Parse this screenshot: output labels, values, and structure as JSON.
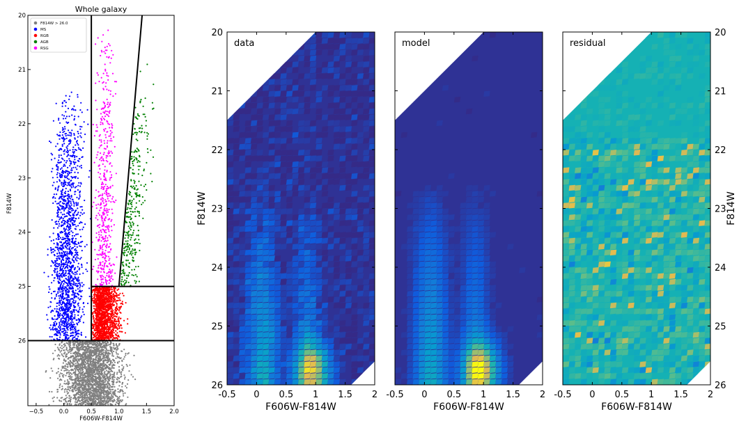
{
  "chart_data": [
    {
      "type": "scatter",
      "title": "Whole galaxy",
      "xlabel": "F606W-F814W",
      "ylabel": "F814W",
      "xlim": [
        -0.65,
        2.0
      ],
      "ylim": [
        27.2,
        20.0
      ],
      "y_inverted": true,
      "xticks": [
        -0.5,
        0.0,
        0.5,
        1.0,
        1.5,
        2.0
      ],
      "xtick_labels": [
        "−0.5",
        "0.0",
        "0.5",
        "1.0",
        "1.5",
        "2.0"
      ],
      "yticks": [
        20,
        21,
        22,
        23,
        24,
        25,
        26
      ],
      "ytick_labels": [
        "20",
        "21",
        "22",
        "23",
        "24",
        "25",
        "26"
      ],
      "legend": {
        "placement": "top-left",
        "entries": [
          {
            "name": "F814W > 26.0",
            "color": "#808080"
          },
          {
            "name": "MS",
            "color": "#0000ff"
          },
          {
            "name": "RGB",
            "color": "#ff0000"
          },
          {
            "name": "AGB",
            "color": "#008000"
          },
          {
            "name": "RSG",
            "color": "#ff00ff"
          }
        ]
      },
      "boundaries": [
        {
          "x": [
            0.5,
            0.5
          ],
          "y": [
            20.0,
            26.0
          ]
        },
        {
          "x": [
            1.0,
            1.42
          ],
          "y": [
            25.0,
            20.0
          ]
        },
        {
          "x": [
            0.5,
            2.0
          ],
          "y": [
            25.0,
            25.0
          ]
        },
        {
          "x": [
            -0.65,
            2.0
          ],
          "y": [
            26.0,
            26.0
          ]
        }
      ],
      "populations": [
        {
          "name": "F814W > 26.0",
          "color": "#808080",
          "region": {
            "x": [
              -0.6,
              1.6
            ],
            "y": [
              26.0,
              27.2
            ]
          },
          "approx_count": 2600
        },
        {
          "name": "MS",
          "color": "#0000ff",
          "region": {
            "x": [
              -0.6,
              0.5
            ],
            "y": [
              21.4,
              26.0
            ]
          },
          "approx_count": 1700
        },
        {
          "name": "RGB",
          "color": "#ff0000",
          "region": {
            "x": [
              0.5,
              1.7
            ],
            "y": [
              25.0,
              26.0
            ]
          },
          "approx_count": 1500
        },
        {
          "name": "AGB",
          "color": "#008000",
          "region": {
            "x": [
              1.0,
              2.0
            ],
            "y": [
              20.0,
              25.0
            ]
          },
          "approx_count": 330
        },
        {
          "name": "RSG",
          "color": "#ff00ff",
          "region": {
            "x": [
              0.5,
              1.3
            ],
            "y": [
              20.0,
              25.0
            ]
          },
          "approx_count": 520
        }
      ]
    },
    {
      "type": "heatmap",
      "panel_label": "data",
      "xlabel": "F606W-F814W",
      "ylabel": "F814W",
      "xlim": [
        -0.5,
        2.0
      ],
      "ylim": [
        26.0,
        20.0
      ],
      "xticks": [
        -0.5,
        0,
        0.5,
        1,
        1.5,
        2
      ],
      "xtick_labels": [
        "-0.5",
        "0",
        "0.5",
        "1",
        "1.5",
        "2"
      ],
      "yticks": [
        20,
        21,
        22,
        23,
        24,
        25,
        26
      ],
      "ytick_labels": [
        "20",
        "21",
        "22",
        "23",
        "24",
        "25",
        "26"
      ],
      "colormap": "parula",
      "peaks": [
        {
          "x": 0.95,
          "y": 25.6,
          "level": 0.75
        }
      ]
    },
    {
      "type": "heatmap",
      "panel_label": "model",
      "xlabel": "F606W-F814W",
      "xlim": [
        -0.5,
        2.0
      ],
      "ylim": [
        26.0,
        20.0
      ],
      "xticks": [
        -0.5,
        0,
        0.5,
        1,
        1.5,
        2
      ],
      "xtick_labels": [
        "-0.5",
        "0",
        "0.5",
        "1",
        "1.5",
        "2"
      ],
      "colormap": "parula",
      "peaks": [
        {
          "x": 0.95,
          "y": 25.7,
          "level": 0.9
        }
      ]
    },
    {
      "type": "heatmap",
      "panel_label": "residual",
      "xlabel": "F606W-F814W",
      "ylabel": "F814W",
      "xlim": [
        -0.5,
        2.0
      ],
      "ylim": [
        26.0,
        20.0
      ],
      "xticks": [
        -0.5,
        0,
        0.5,
        1,
        1.5,
        2
      ],
      "xtick_labels": [
        "-0.5",
        "0",
        "0.5",
        "1",
        "1.5",
        "2"
      ],
      "yticks": [
        20,
        21,
        22,
        23,
        24,
        25,
        26
      ],
      "ytick_labels": [
        "20",
        "21",
        "22",
        "23",
        "24",
        "25",
        "26"
      ],
      "colormap": "parula",
      "background_level": 0.5
    }
  ]
}
